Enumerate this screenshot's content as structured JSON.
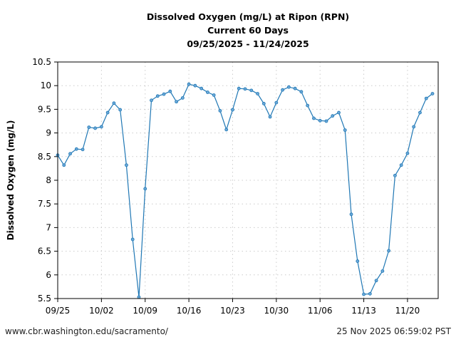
{
  "chart_data": {
    "type": "line",
    "title": [
      "Dissolved Oxygen (mg/L) at Ripon (RPN)",
      "Current 60 Days",
      "09/25/2025 - 11/24/2025"
    ],
    "xlabel": "",
    "ylabel": "Dissolved Oxygen (mg/L)",
    "ylim": [
      5.5,
      10.5
    ],
    "yticks": [
      "5.5",
      "6",
      "6.5",
      "7",
      "7.5",
      "8",
      "8.5",
      "9",
      "9.5",
      "10",
      "10.5"
    ],
    "xticks": [
      "09/25",
      "10/02",
      "10/09",
      "10/16",
      "10/23",
      "10/30",
      "11/06",
      "11/13",
      "11/20"
    ],
    "x_start": "09/25/2025",
    "x_end": "11/24/2025",
    "grid": true,
    "color": "#1f77b4",
    "series": [
      {
        "values": [
          8.53,
          8.32,
          8.56,
          8.66,
          8.65,
          9.12,
          9.1,
          9.13,
          9.43,
          9.63,
          9.49,
          8.32,
          6.75,
          5.53,
          7.82,
          9.69,
          9.78,
          9.82,
          9.88,
          9.66,
          9.74,
          10.03,
          10.0,
          9.94,
          9.86,
          9.8,
          9.47,
          9.07,
          9.49,
          9.94,
          9.93,
          9.9,
          9.83,
          9.62,
          9.34,
          9.64,
          9.91,
          9.97,
          9.94,
          9.87,
          9.58,
          9.31,
          9.26,
          9.25,
          9.36,
          9.43,
          9.06,
          7.28,
          6.29,
          5.59,
          5.6,
          5.88,
          6.08,
          6.51,
          8.1,
          8.32,
          8.57,
          9.13,
          9.43,
          9.73,
          9.83
        ]
      }
    ]
  },
  "footer": {
    "url": "www.cbr.washington.edu/sacramento/",
    "timestamp": "25 Nov 2025 06:59:02 PST"
  }
}
